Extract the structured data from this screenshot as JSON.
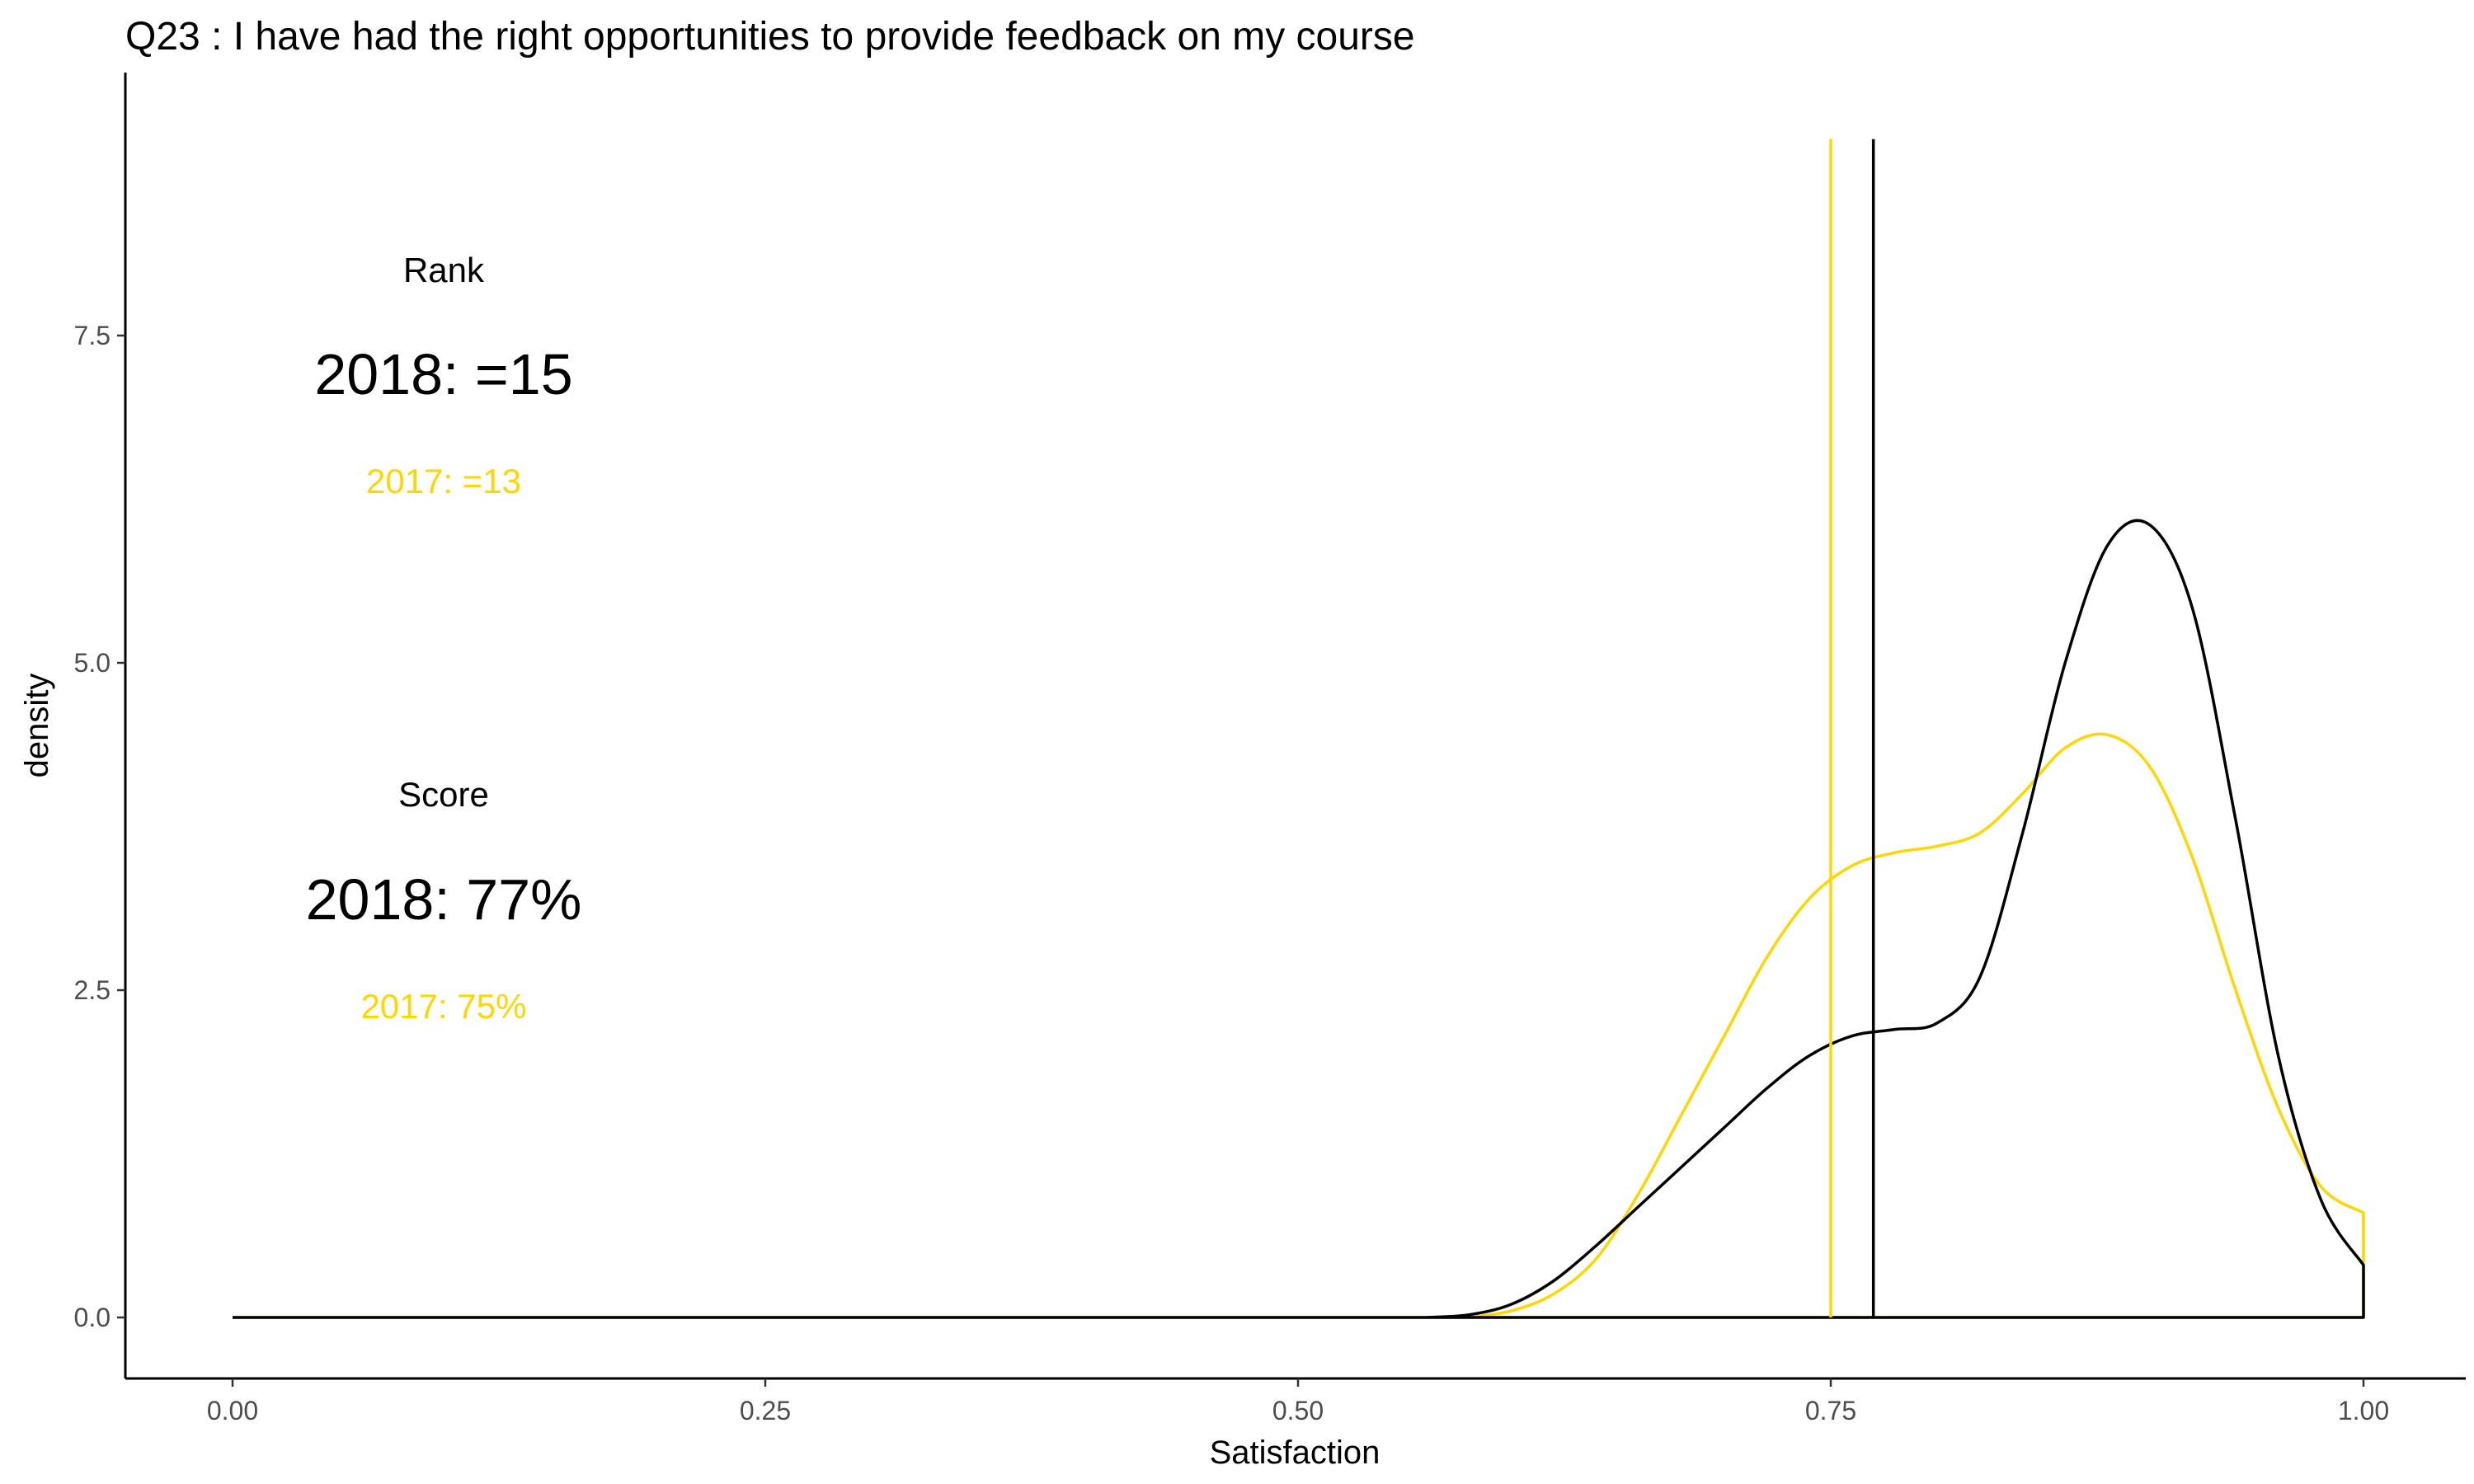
{
  "chart_data": {
    "type": "area",
    "title": "Q23 :   I have had the right opportunities to provide feedback on my course",
    "xlabel": "Satisfaction",
    "ylabel": "density",
    "xlim": [
      0.0,
      1.0
    ],
    "ylim": [
      0.0,
      9.0
    ],
    "x_ticks": [
      "0.00",
      "0.25",
      "0.50",
      "0.75",
      "1.00"
    ],
    "y_ticks": [
      "0.0",
      "2.5",
      "5.0",
      "7.5"
    ],
    "grid": false,
    "legend": "none",
    "series": [
      {
        "color": "#000000",
        "x": [
          0.0,
          0.56,
          0.58,
          0.6,
          0.62,
          0.64,
          0.66,
          0.68,
          0.7,
          0.72,
          0.74,
          0.76,
          0.78,
          0.8,
          0.82,
          0.84,
          0.86,
          0.88,
          0.9,
          0.92,
          0.94,
          0.96,
          0.98,
          1.0
        ],
        "y": [
          0.0,
          0.0,
          0.02,
          0.1,
          0.28,
          0.55,
          0.85,
          1.15,
          1.45,
          1.75,
          2.0,
          2.15,
          2.2,
          2.25,
          2.6,
          3.7,
          5.0,
          5.9,
          6.05,
          5.4,
          3.8,
          2.0,
          0.9,
          0.4
        ]
      },
      {
        "color": "#FFD700",
        "x": [
          0.0,
          0.58,
          0.6,
          0.62,
          0.64,
          0.66,
          0.68,
          0.7,
          0.72,
          0.74,
          0.76,
          0.78,
          0.8,
          0.82,
          0.84,
          0.86,
          0.88,
          0.9,
          0.92,
          0.94,
          0.96,
          0.98,
          1.0
        ],
        "y": [
          0.0,
          0.0,
          0.05,
          0.18,
          0.45,
          0.95,
          1.55,
          2.15,
          2.75,
          3.2,
          3.45,
          3.55,
          3.6,
          3.7,
          4.0,
          4.35,
          4.45,
          4.2,
          3.5,
          2.5,
          1.6,
          1.0,
          0.8
        ]
      }
    ],
    "vlines": [
      {
        "x": 0.75,
        "color": "#FFD700"
      },
      {
        "x": 0.77,
        "color": "#000000"
      }
    ],
    "annotations": {
      "rank_heading": "Rank",
      "rank_2018": "2018: =15",
      "rank_2017": "2017: =13",
      "score_heading": "Score",
      "score_2018": "2018: 77%",
      "score_2017": "2017: 75%",
      "color_2017": "#FFD700",
      "color_2018": "#000000"
    }
  }
}
